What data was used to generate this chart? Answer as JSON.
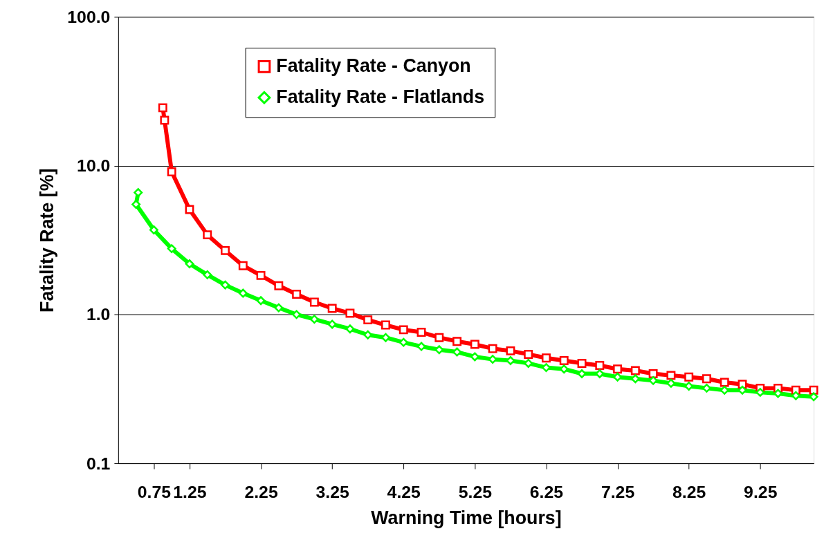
{
  "chart_data": {
    "type": "line",
    "xlabel": "Warning Time [hours]",
    "ylabel": "Fatality Rate [%]",
    "log": "y",
    "grid": "y",
    "legend": "top",
    "marker": "square",
    "line_style": "solid",
    "xlim": [
      0.25,
      10
    ],
    "xticks": [
      0.75,
      1.25,
      2.25,
      3.25,
      4.25,
      5.25,
      6.25,
      7.25,
      8.25,
      9.25
    ],
    "ylim": [
      0.1,
      100
    ],
    "yticks": [
      {
        "value": 0.1,
        "label": "0.1"
      },
      {
        "value": 1,
        "label": "1.0"
      },
      {
        "value": 10,
        "label": "10.0"
      },
      {
        "value": 100,
        "label": "100.0"
      }
    ],
    "series": [
      {
        "name": "Fatality Rate - Canyon",
        "color": "#ff0000",
        "marker": "square",
        "x": [
          0.875,
          0.9,
          1.0,
          1.25,
          1.5,
          1.75,
          2.0,
          2.25,
          2.5,
          2.75,
          3.0,
          3.25,
          3.5,
          3.75,
          4.0,
          4.25,
          4.5,
          4.75,
          5.0,
          5.25,
          5.5,
          5.75,
          6.0,
          6.25,
          6.5,
          6.75,
          7.0,
          7.25,
          7.5,
          7.75,
          8.0,
          8.25,
          8.5,
          8.75,
          9.0,
          9.25,
          9.5,
          9.75,
          10.0
        ],
        "values": [
          24.5,
          20.2,
          9.1,
          5.08,
          3.43,
          2.69,
          2.13,
          1.83,
          1.56,
          1.37,
          1.21,
          1.1,
          1.02,
          0.92,
          0.85,
          0.79,
          0.76,
          0.7,
          0.66,
          0.63,
          0.59,
          0.57,
          0.54,
          0.51,
          0.49,
          0.47,
          0.455,
          0.43,
          0.42,
          0.4,
          0.39,
          0.38,
          0.37,
          0.35,
          0.34,
          0.32,
          0.32,
          0.31,
          0.31
        ]
      },
      {
        "name": "Fatality Rate - Flatlands",
        "color": "#00ff00",
        "marker": "diamond",
        "x": [
          0.53,
          0.5,
          0.75,
          1.0,
          1.25,
          1.5,
          1.75,
          2.0,
          2.25,
          2.5,
          2.75,
          3.0,
          3.25,
          3.5,
          3.75,
          4.0,
          4.25,
          4.5,
          4.75,
          5.0,
          5.25,
          5.5,
          5.75,
          6.0,
          6.25,
          6.5,
          6.75,
          7.0,
          7.25,
          7.5,
          7.75,
          8.0,
          8.25,
          8.5,
          8.75,
          9.0,
          9.25,
          9.5,
          9.75,
          10.0
        ],
        "values": [
          6.6,
          5.5,
          3.7,
          2.77,
          2.19,
          1.85,
          1.58,
          1.39,
          1.24,
          1.11,
          1.0,
          0.93,
          0.86,
          0.8,
          0.73,
          0.7,
          0.65,
          0.61,
          0.58,
          0.56,
          0.52,
          0.5,
          0.49,
          0.47,
          0.44,
          0.43,
          0.4,
          0.4,
          0.38,
          0.37,
          0.36,
          0.345,
          0.33,
          0.32,
          0.31,
          0.31,
          0.3,
          0.295,
          0.285,
          0.28
        ]
      }
    ]
  }
}
